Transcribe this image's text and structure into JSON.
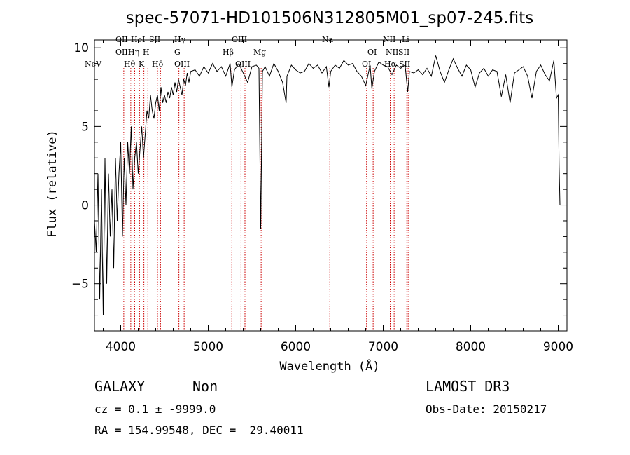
{
  "chart_data": {
    "type": "line",
    "title": "spec-57071-HD101506N312805M01_sp07-245.fits",
    "xlabel": "Wavelength (Å)",
    "ylabel": "Flux (relative)",
    "xlim": [
      3700,
      9100
    ],
    "ylim": [
      -8,
      10.5
    ],
    "xticks": [
      4000,
      5000,
      6000,
      7000,
      8000,
      9000
    ],
    "yticks": [
      -5,
      0,
      5,
      10
    ],
    "line_color": "#000000",
    "marker_color": "#cc0000",
    "series": [
      {
        "name": "spectrum",
        "x": [
          3700,
          3720,
          3740,
          3760,
          3780,
          3800,
          3820,
          3840,
          3860,
          3880,
          3900,
          3920,
          3940,
          3960,
          3980,
          4000,
          4020,
          4040,
          4060,
          4080,
          4100,
          4120,
          4140,
          4160,
          4180,
          4200,
          4220,
          4240,
          4260,
          4280,
          4300,
          4320,
          4340,
          4360,
          4380,
          4400,
          4420,
          4440,
          4460,
          4480,
          4500,
          4520,
          4540,
          4560,
          4580,
          4600,
          4620,
          4640,
          4660,
          4680,
          4700,
          4720,
          4740,
          4760,
          4780,
          4800,
          4850,
          4900,
          4950,
          5000,
          5050,
          5100,
          5150,
          5200,
          5250,
          5270,
          5300,
          5350,
          5400,
          5450,
          5500,
          5550,
          5580,
          5600,
          5620,
          5650,
          5700,
          5750,
          5800,
          5850,
          5890,
          5900,
          5950,
          6000,
          6050,
          6100,
          6150,
          6200,
          6250,
          6300,
          6350,
          6380,
          6400,
          6450,
          6500,
          6550,
          6600,
          6650,
          6700,
          6750,
          6800,
          6850,
          6870,
          6900,
          6950,
          7000,
          7050,
          7080,
          7100,
          7150,
          7200,
          7250,
          7280,
          7300,
          7350,
          7400,
          7450,
          7500,
          7550,
          7600,
          7650,
          7700,
          7750,
          7800,
          7850,
          7900,
          7950,
          8000,
          8050,
          8100,
          8150,
          8200,
          8250,
          8300,
          8350,
          8400,
          8450,
          8500,
          8550,
          8600,
          8650,
          8700,
          8750,
          8800,
          8850,
          8900,
          8950,
          8980,
          9000,
          9010,
          9020
        ],
        "y": [
          -1,
          -3,
          2,
          -6,
          1,
          -7,
          3,
          -5,
          2,
          -2,
          1,
          -4,
          3,
          -1,
          2,
          4,
          -2,
          3,
          0,
          4,
          2,
          5,
          1,
          3,
          4,
          2,
          3.5,
          5,
          3,
          4.5,
          6,
          5.5,
          7,
          6,
          5.5,
          6.5,
          7,
          6,
          7.5,
          6.5,
          7,
          6.5,
          7.2,
          6.8,
          7.5,
          7,
          7.8,
          7.2,
          8,
          7.5,
          7,
          8,
          7.6,
          8.4,
          7.8,
          8.5,
          8.6,
          8.2,
          8.8,
          8.4,
          9,
          8.5,
          8.8,
          8.2,
          9,
          7.5,
          8.6,
          9,
          8.4,
          7.8,
          8.8,
          8.9,
          8.7,
          -1.5,
          8.5,
          8.8,
          8.2,
          9,
          8.5,
          7.8,
          6.5,
          8.2,
          8.9,
          8.6,
          8.4,
          8.5,
          9,
          8.7,
          8.9,
          8.4,
          8.8,
          7.5,
          8.5,
          8.9,
          8.7,
          9.2,
          8.9,
          9,
          8.5,
          8.2,
          7.6,
          8.9,
          7.4,
          8.5,
          9.1,
          8.9,
          8.8,
          8.5,
          8.3,
          8.9,
          8.7,
          8.9,
          7.2,
          8.5,
          8.4,
          8.6,
          8.3,
          8.7,
          8.2,
          9.5,
          8.5,
          7.8,
          8.6,
          9.3,
          8.7,
          8.2,
          8.9,
          8.6,
          7.5,
          8.4,
          8.7,
          8.2,
          8.6,
          8.5,
          6.9,
          8.3,
          6.5,
          8.4,
          8.6,
          8.8,
          8.2,
          6.8,
          8.5,
          8.9,
          8.3,
          7.9,
          9.2,
          6.8,
          7,
          2.5,
          0
        ]
      }
    ],
    "line_markers": [
      {
        "name": "NeV",
        "x": 3426,
        "row": 2
      },
      {
        "name": "OII",
        "x": 3727,
        "row": 0
      },
      {
        "name": "OIII",
        "x": 3869,
        "row": 1
      },
      {
        "name": "Hθ",
        "x": 3889,
        "row": 2
      },
      {
        "name": "HeI",
        "x": 4026,
        "row": 0
      },
      {
        "name": "Hη",
        "x": 4102,
        "row": 1
      },
      {
        "name": "K",
        "x": 3934,
        "row": 2
      },
      {
        "name": "SII",
        "x": 4072,
        "row": 0
      },
      {
        "name": "H",
        "x": 3968,
        "row": 1
      },
      {
        "name": "Hδ",
        "x": 4102,
        "row": 2
      },
      {
        "name": "Hγ",
        "x": 4340,
        "row": 0
      },
      {
        "name": "G",
        "x": 4304,
        "row": 1
      },
      {
        "name": "OIII",
        "x": 4363,
        "row": 2
      },
      {
        "name": "OIII",
        "x": 5007,
        "row": 0
      },
      {
        "name": "Hβ",
        "x": 4861,
        "row": 1
      },
      {
        "name": "OIII",
        "x": 4959,
        "row": 2
      },
      {
        "name": "Mg",
        "x": 5175,
        "row": 1
      },
      {
        "name": "Na",
        "x": 5893,
        "row": 0
      },
      {
        "name": "OI",
        "x": 6300,
        "row": 1
      },
      {
        "name": "OI",
        "x": 6363,
        "row": 2
      },
      {
        "name": "NII",
        "x": 6548,
        "row": 0
      },
      {
        "name": "NII",
        "x": 6583,
        "row": 1
      },
      {
        "name": "Hα",
        "x": 6563,
        "row": 2
      },
      {
        "name": "Li",
        "x": 6708,
        "row": 0
      },
      {
        "name": "SII",
        "x": 6716,
        "row": 1
      },
      {
        "name": "SII",
        "x": 6731,
        "row": 2
      }
    ],
    "marker_x_lines": [
      4035,
      4115,
      4160,
      4215,
      4265,
      4310,
      4420,
      4455,
      4665,
      4725,
      5270,
      5375,
      5420,
      5605,
      6390,
      6810,
      6885,
      7080,
      7125,
      7270,
      7285
    ]
  },
  "info": {
    "class_label": "GALAXY",
    "subclass_label": "Non",
    "survey": "LAMOST DR3",
    "cz_line": "cz = 0.1 ± -9999.0",
    "obs_date_line": "Obs-Date: 20150217",
    "coords_line": "RA = 154.99548, DEC =  29.40011"
  }
}
